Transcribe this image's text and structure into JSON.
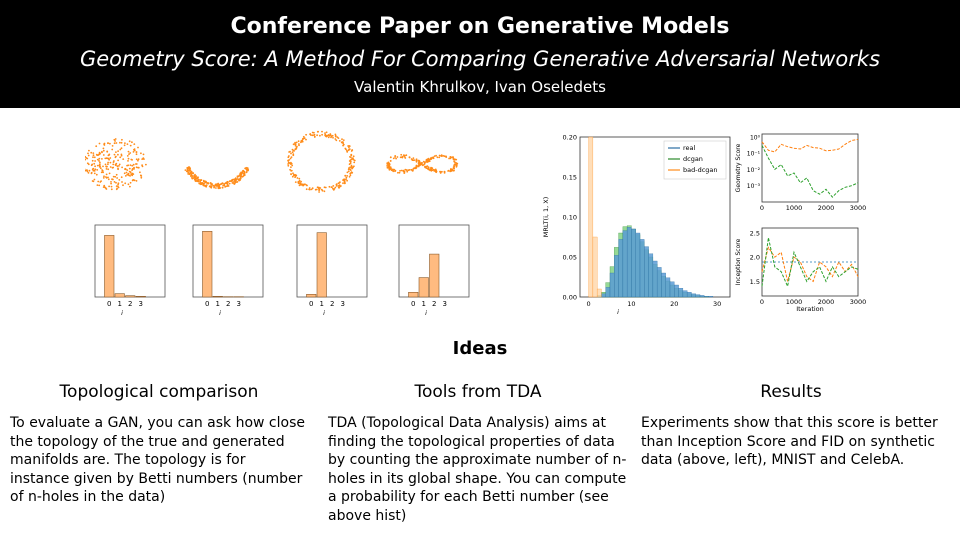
{
  "header": {
    "title": "Conference Paper on Generative Models",
    "subtitle": "Geometry Score: A Method For Comparing Generative Adversarial Networks",
    "authors": "Valentin Khrulkov, Ivan Oseledets"
  },
  "colors": {
    "header_bg": "#000000",
    "orange": "#ff8c1a",
    "bar_orange": "#ffbb80",
    "real": "#5b9bd5",
    "dcgan": "#2ca02c",
    "bad_dcgan": "#ff9f3a"
  },
  "shape_icons": [
    "scattered-blob",
    "lower-arc",
    "ring",
    "figure-eight"
  ],
  "chart_data": [
    {
      "type": "bar",
      "title": "",
      "xlabel": "i",
      "categories": [
        "0",
        "1",
        "2",
        "3"
      ],
      "values": [
        0.92,
        0.05,
        0.02,
        0.01
      ],
      "ylim": [
        0,
        1
      ]
    },
    {
      "type": "bar",
      "title": "",
      "xlabel": "i",
      "categories": [
        "0",
        "1",
        "2",
        "3"
      ],
      "values": [
        0.98,
        0.01,
        0.005,
        0.005
      ],
      "ylim": [
        0,
        1
      ]
    },
    {
      "type": "bar",
      "title": "",
      "xlabel": "i",
      "categories": [
        "0",
        "1",
        "2",
        "3"
      ],
      "values": [
        0.04,
        0.96,
        0.0,
        0.0
      ],
      "ylim": [
        0,
        1
      ]
    },
    {
      "type": "bar",
      "title": "",
      "xlabel": "i",
      "categories": [
        "0",
        "1",
        "2",
        "3"
      ],
      "values": [
        0.07,
        0.29,
        0.64,
        0.0
      ],
      "ylim": [
        0,
        1
      ]
    },
    {
      "type": "bar",
      "title": "",
      "xlabel": "i",
      "ylabel": "MRLT(i, 1, X)",
      "xlim": [
        -2,
        33
      ],
      "ylim": [
        0,
        0.2
      ],
      "xticks": [
        0,
        10,
        20,
        30
      ],
      "yticks": [
        "0.00",
        "0.05",
        "0.10",
        "0.15",
        "0.20"
      ],
      "legend": [
        "real",
        "dcgan",
        "bad-dcgan"
      ],
      "legend_position": "top-right",
      "series": [
        {
          "name": "real",
          "x": [
            0,
            1,
            2,
            3,
            4,
            5,
            6,
            7,
            8,
            9,
            10,
            11,
            12,
            13,
            14,
            15,
            16,
            17,
            18,
            19,
            20,
            21,
            22,
            23,
            24,
            25,
            26,
            27,
            28,
            29,
            30
          ],
          "values": [
            0.0,
            0.0,
            0.001,
            0.004,
            0.012,
            0.03,
            0.052,
            0.072,
            0.083,
            0.087,
            0.085,
            0.08,
            0.072,
            0.063,
            0.054,
            0.045,
            0.037,
            0.03,
            0.024,
            0.019,
            0.015,
            0.011,
            0.008,
            0.006,
            0.004,
            0.003,
            0.002,
            0.001,
            0.001,
            0.0,
            0.0
          ]
        },
        {
          "name": "dcgan",
          "x": [
            0,
            1,
            2,
            3,
            4,
            5,
            6,
            7,
            8,
            9,
            10,
            11,
            12,
            13,
            14,
            15,
            16,
            17,
            18,
            19,
            20,
            21,
            22,
            23,
            24,
            25,
            26,
            27,
            28,
            29,
            30
          ],
          "values": [
            0.0,
            0.0,
            0.002,
            0.006,
            0.018,
            0.038,
            0.062,
            0.08,
            0.088,
            0.089,
            0.085,
            0.078,
            0.069,
            0.059,
            0.05,
            0.041,
            0.033,
            0.026,
            0.02,
            0.015,
            0.011,
            0.008,
            0.006,
            0.004,
            0.003,
            0.002,
            0.001,
            0.001,
            0.0,
            0.0,
            0.0
          ]
        },
        {
          "name": "bad-dcgan",
          "x": [
            0,
            1,
            2,
            3,
            4,
            5,
            6,
            7,
            8,
            9,
            10,
            11,
            12,
            13,
            14,
            15,
            16,
            17,
            18,
            19,
            20,
            21,
            22,
            23,
            24,
            25,
            26,
            27,
            28,
            29,
            30
          ],
          "values": [
            0.2,
            0.075,
            0.01,
            0.0,
            0.0,
            0.0,
            0.0,
            0.0,
            0.0,
            0.0,
            0.0,
            0.0,
            0.0,
            0.0,
            0.0,
            0.0,
            0.0,
            0.0,
            0.0,
            0.0,
            0.0,
            0.0,
            0.0,
            0.0,
            0.0,
            0.0,
            0.0,
            0.0,
            0.0,
            0.0,
            0.0
          ]
        }
      ]
    },
    {
      "type": "line",
      "title": "",
      "xlabel": "",
      "ylabel": "Geometry Score",
      "yscale": "log",
      "xlim": [
        0,
        3000
      ],
      "ylim": [
        0.0001,
        1.5
      ],
      "xticks": [
        0,
        1000,
        2000,
        3000
      ],
      "yticks": [
        1,
        0.1,
        0.01,
        0.001
      ],
      "ytick_labels": [
        "10⁰",
        "10⁻¹",
        "10⁻²",
        "10⁻³"
      ],
      "series": [
        {
          "name": "",
          "color": "#ff7f0e",
          "x": [
            0,
            200,
            400,
            600,
            800,
            1000,
            1200,
            1400,
            1600,
            1800,
            2000,
            2200,
            2400,
            2600,
            2800,
            3000
          ],
          "values": [
            0.5,
            0.15,
            0.12,
            0.35,
            0.25,
            0.2,
            0.18,
            0.3,
            0.22,
            0.2,
            0.14,
            0.15,
            0.18,
            0.35,
            0.6,
            0.7
          ]
        },
        {
          "name": "",
          "color": "#2ca02c",
          "x": [
            0,
            200,
            400,
            600,
            800,
            1000,
            1200,
            1400,
            1600,
            1800,
            2000,
            2200,
            2400,
            2600,
            2800,
            3000
          ],
          "values": [
            0.3,
            0.05,
            0.01,
            0.02,
            0.004,
            0.006,
            0.0015,
            0.003,
            0.0005,
            0.0003,
            0.0006,
            0.0002,
            0.0005,
            0.0008,
            0.001,
            0.0015
          ]
        }
      ]
    },
    {
      "type": "line",
      "title": "",
      "xlabel": "Iteration",
      "ylabel": "Inception Score",
      "xlim": [
        0,
        3000
      ],
      "ylim": [
        1.2,
        2.6
      ],
      "xticks": [
        0,
        1000,
        2000,
        3000
      ],
      "yticks": [
        "1.5",
        "2.0",
        "2.5"
      ],
      "reference_line": 1.9,
      "series": [
        {
          "name": "",
          "color": "#ff7f0e",
          "x": [
            0,
            200,
            400,
            600,
            800,
            1000,
            1200,
            1400,
            1600,
            1800,
            2000,
            2200,
            2400,
            2600,
            2800,
            3000
          ],
          "values": [
            1.7,
            2.2,
            2.0,
            2.1,
            1.5,
            2.0,
            1.9,
            1.6,
            1.5,
            1.9,
            1.8,
            1.6,
            1.9,
            1.7,
            1.85,
            1.6
          ]
        },
        {
          "name": "",
          "color": "#2ca02c",
          "x": [
            0,
            200,
            400,
            600,
            800,
            1000,
            1200,
            1400,
            1600,
            1800,
            2000,
            2200,
            2400,
            2600,
            2800,
            3000
          ],
          "values": [
            1.4,
            2.4,
            1.8,
            1.7,
            1.4,
            2.1,
            1.8,
            1.5,
            1.7,
            1.8,
            1.5,
            1.8,
            1.6,
            1.7,
            1.8,
            1.75
          ]
        }
      ]
    }
  ],
  "ideas": {
    "heading": "Ideas",
    "columns": [
      {
        "title": "Topological comparison",
        "text": "To evaluate a GAN, you can ask how close the topology of the true and generated manifolds are. The topology is for instance given by Betti numbers (number of n-holes in the data)"
      },
      {
        "title": "Tools from TDA",
        "text": "TDA (Topological Data Analysis) aims at finding the topological properties of data by counting the approximate number of n-holes in its global shape. You can compute a probability for each Betti number (see above hist)"
      },
      {
        "title": "Results",
        "text": "Experiments show that this score is better than Inception Score and FID on synthetic data (above, left), MNIST and CelebA."
      }
    ]
  }
}
